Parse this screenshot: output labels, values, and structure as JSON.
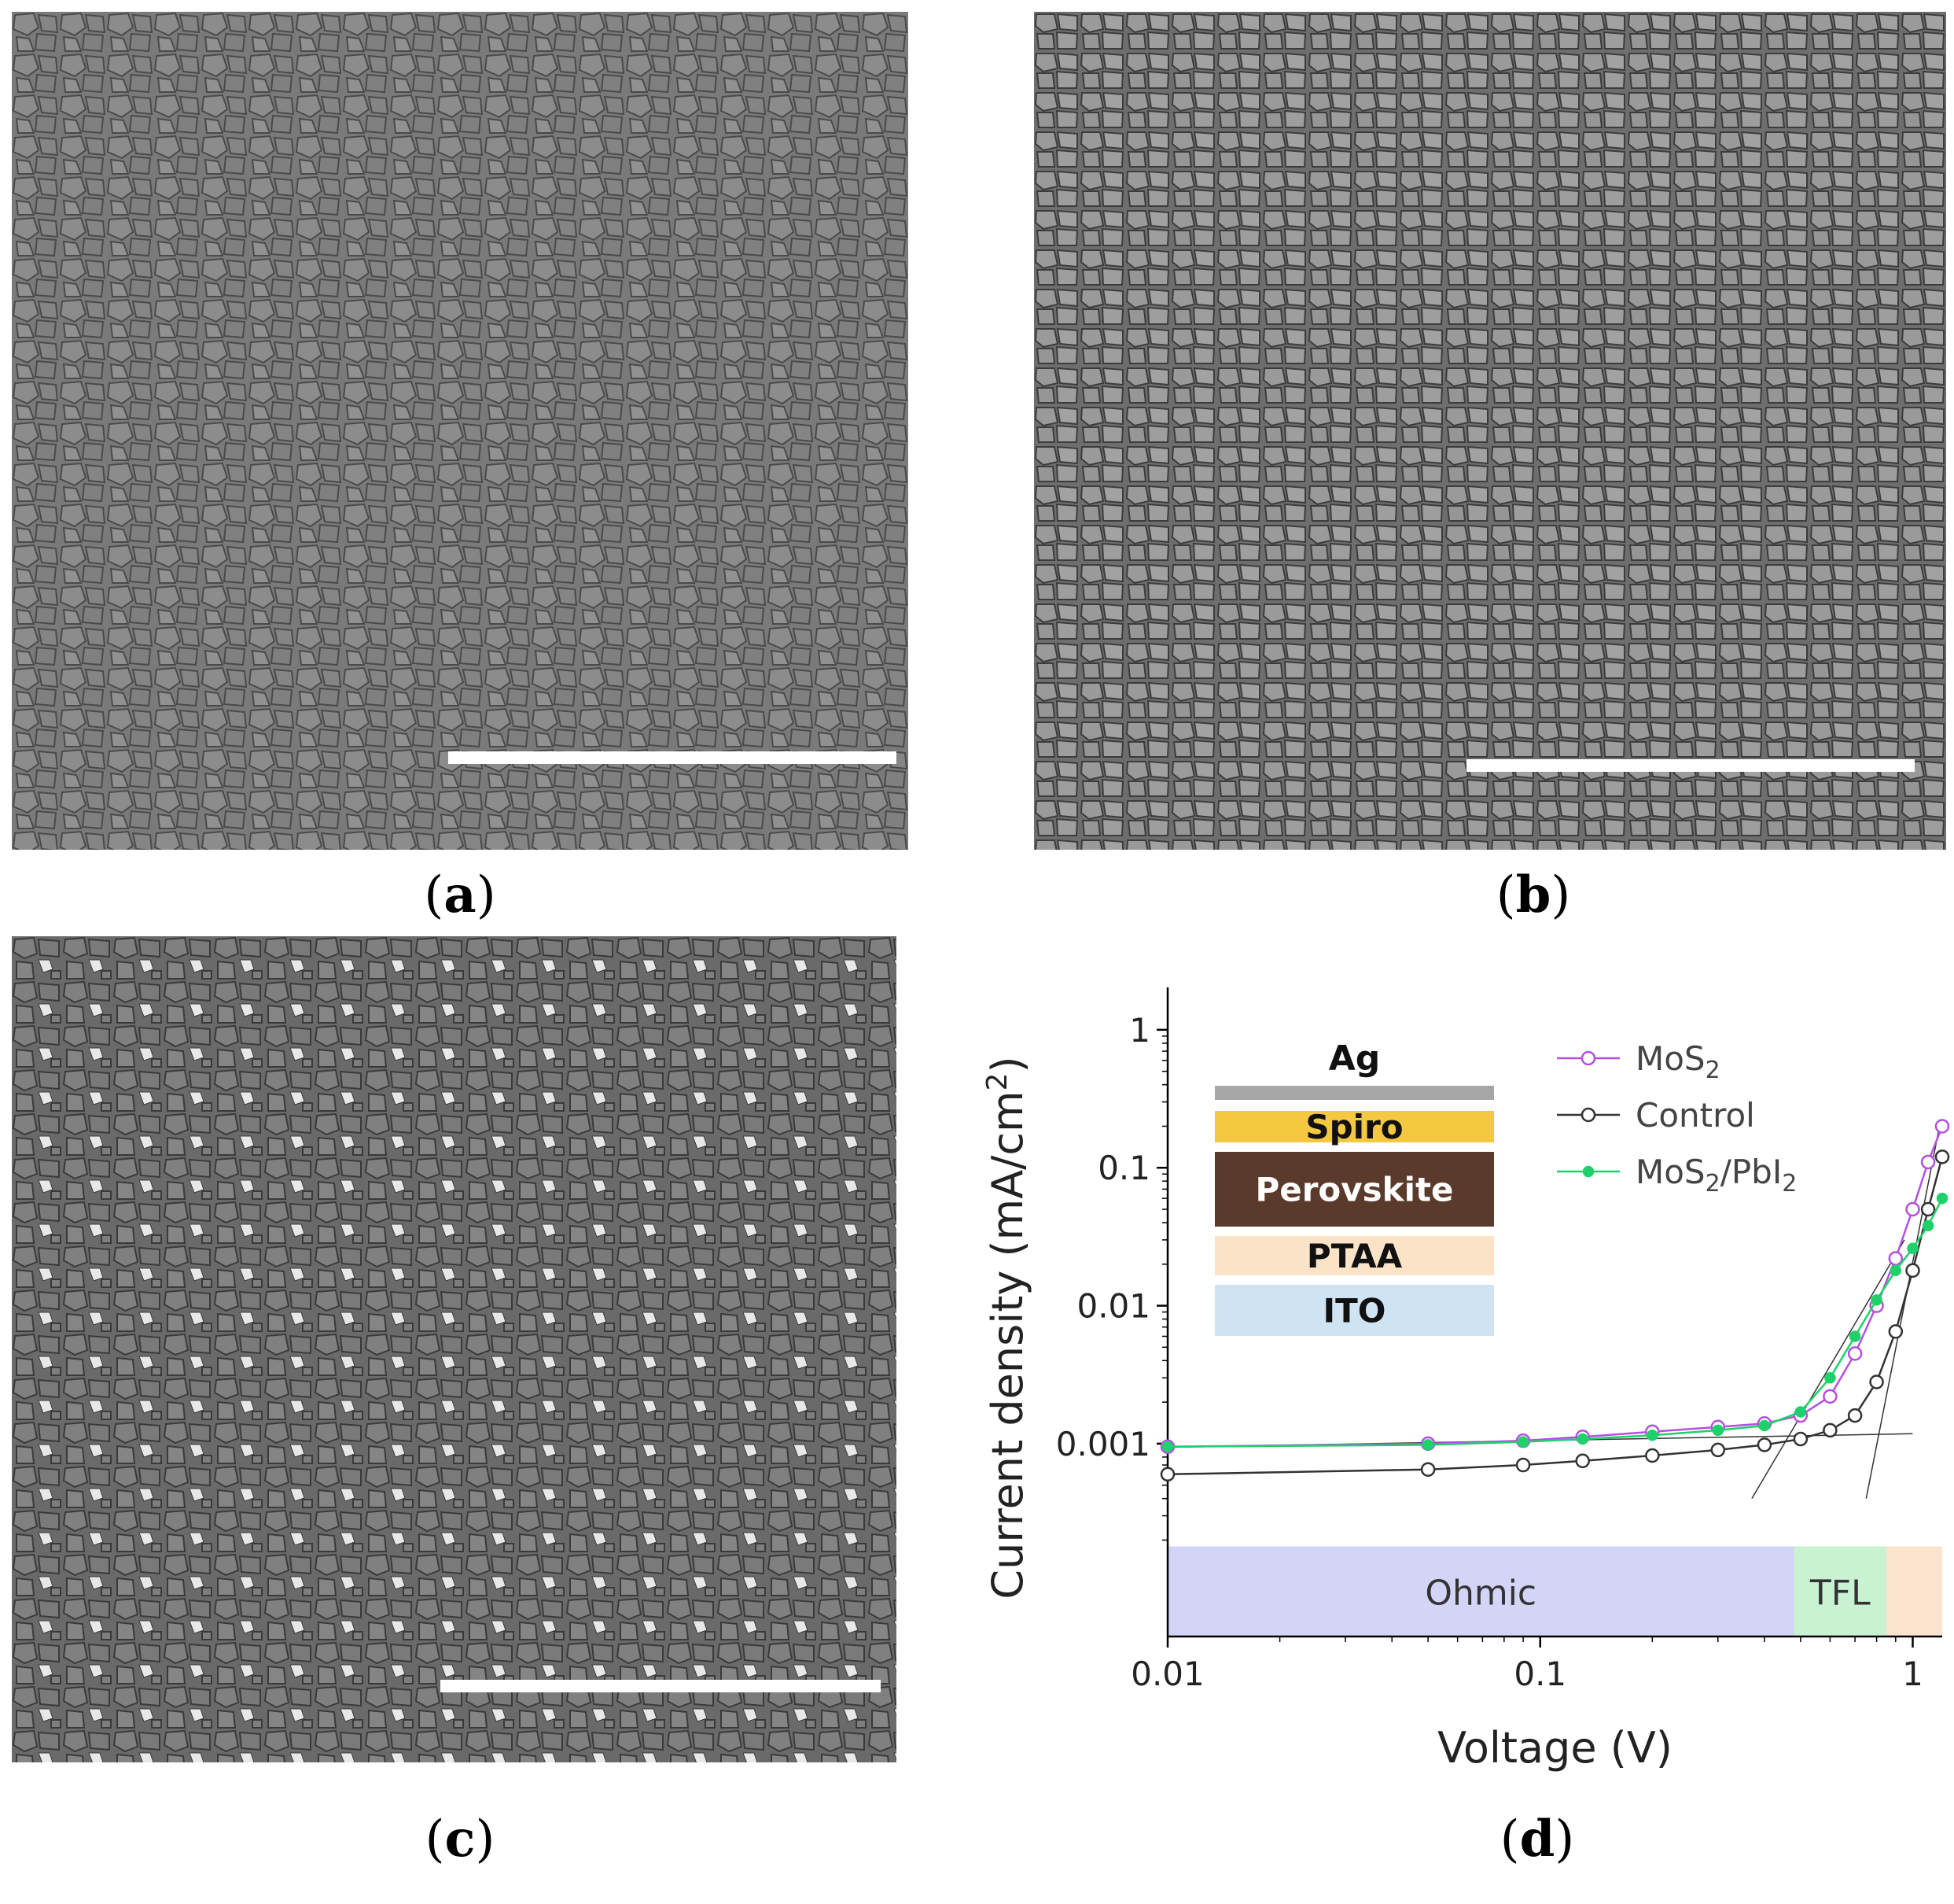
{
  "figure": {
    "panels": [
      {
        "id": "a",
        "caption": "a",
        "type": "SEM micrograph",
        "scale_bar": true
      },
      {
        "id": "b",
        "caption": "b",
        "type": "SEM micrograph",
        "scale_bar": true
      },
      {
        "id": "c",
        "caption": "c",
        "type": "SEM micrograph",
        "scale_bar": true
      },
      {
        "id": "d",
        "caption": "d",
        "type": "log-log current density vs voltage plot"
      }
    ]
  },
  "device_stack": {
    "layers": [
      {
        "label": "Ag",
        "color": "#a6a6a6"
      },
      {
        "label": "Spiro",
        "color": "#f5c842"
      },
      {
        "label": "Perovskite",
        "color": "#5a3a2a"
      },
      {
        "label": "PTAA",
        "color": "#fbe3c8"
      },
      {
        "label": "ITO",
        "color": "#cfe3f3"
      }
    ]
  },
  "regions": [
    {
      "label": "Ohmic",
      "color": "#d4d4f7"
    },
    {
      "label": "TFL",
      "color": "#c8f2d2"
    },
    {
      "label": "",
      "color": "#fbe3cd"
    }
  ],
  "chart_data": {
    "type": "scatter",
    "xlabel": "Voltage (V)",
    "ylabel": "Current density (mA/cm2)",
    "ylabel_main": "Current density (mA/cm",
    "ylabel_sup": "2",
    "ylabel_close": ")",
    "x_scale": "log",
    "y_scale": "log",
    "xlim": [
      0.01,
      1.2
    ],
    "ylim": [
      4e-05,
      1.2
    ],
    "x_ticks": [
      {
        "value": 0.01,
        "label": "0.01"
      },
      {
        "value": 0.1,
        "label": "0.1"
      },
      {
        "value": 1,
        "label": "1"
      }
    ],
    "y_ticks": [
      {
        "value": 0.001,
        "label": "0.001"
      },
      {
        "value": 0.01,
        "label": "0.01"
      },
      {
        "value": 0.1,
        "label": "0.1"
      },
      {
        "value": 1,
        "label": "1"
      }
    ],
    "legend_position": "top-right",
    "series": [
      {
        "name": "MoS₂",
        "color": "#b44fe0",
        "marker": "open-circle",
        "x": [
          0.01,
          0.05,
          0.09,
          0.13,
          0.2,
          0.3,
          0.4,
          0.5,
          0.6,
          0.7,
          0.8,
          0.9,
          1.0,
          1.1,
          1.2
        ],
        "y": [
          0.00095,
          0.001,
          0.00105,
          0.00112,
          0.00122,
          0.00132,
          0.0014,
          0.0016,
          0.0022,
          0.0045,
          0.01,
          0.022,
          0.05,
          0.11,
          0.2
        ]
      },
      {
        "name": "Control",
        "color": "#333333",
        "marker": "open-circle",
        "x": [
          0.01,
          0.05,
          0.09,
          0.13,
          0.2,
          0.3,
          0.4,
          0.5,
          0.6,
          0.7,
          0.8,
          0.9,
          1.0,
          1.1,
          1.2
        ],
        "y": [
          0.0006,
          0.00065,
          0.0007,
          0.00075,
          0.00082,
          0.0009,
          0.00098,
          0.00108,
          0.00125,
          0.0016,
          0.0028,
          0.0065,
          0.018,
          0.05,
          0.12
        ]
      },
      {
        "name": "MoS₂/PbI₂",
        "color": "#1fd16a",
        "marker": "filled-circle",
        "x": [
          0.01,
          0.05,
          0.09,
          0.13,
          0.2,
          0.3,
          0.4,
          0.5,
          0.6,
          0.7,
          0.8,
          0.9,
          1.0,
          1.1,
          1.2
        ],
        "y": [
          0.00095,
          0.00098,
          0.00103,
          0.00108,
          0.00115,
          0.00125,
          0.00135,
          0.0017,
          0.003,
          0.006,
          0.011,
          0.018,
          0.026,
          0.038,
          0.06
        ]
      }
    ],
    "legend_labels": [
      {
        "main": "MoS",
        "sub": "2",
        "tail": "",
        "sub2": ""
      },
      {
        "main": "Control",
        "sub": "",
        "tail": "",
        "sub2": ""
      },
      {
        "main": "MoS",
        "sub": "2",
        "tail": "/PbI",
        "sub2": "2"
      }
    ]
  }
}
